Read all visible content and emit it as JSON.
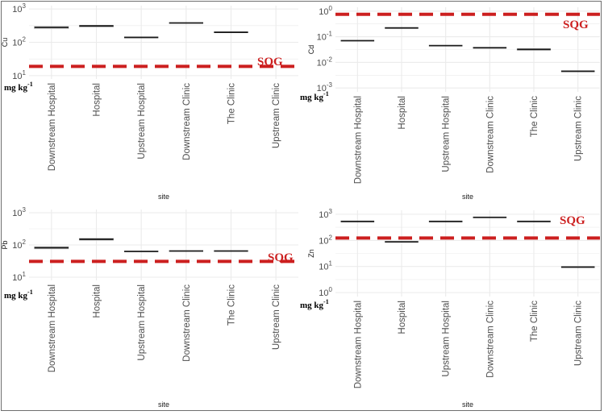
{
  "colors": {
    "grid": "#ebebeb",
    "median": "#1a1a1a",
    "box": "#bdbdbd",
    "sqg": "#cc1f1f"
  },
  "chart_data": [
    {
      "type": "box",
      "ylabel": "Cu",
      "xlabel": "site",
      "yscale": "log",
      "ylim": [
        10,
        1000
      ],
      "yticks": [
        10,
        100,
        1000
      ],
      "yticklabels": [
        [
          "10",
          "1"
        ],
        [
          "10",
          "2"
        ],
        [
          "10",
          "3"
        ]
      ],
      "categories": [
        "Downstream Hospital",
        "Hospital",
        "Upstream Hospital",
        "Downstream Clinic",
        "The Clinic",
        "Upstream Clinic"
      ],
      "values": [
        280,
        310,
        140,
        380,
        200,
        null
      ],
      "box_ranges": [
        [
          255,
          300
        ],
        [
          290,
          325
        ],
        null,
        null,
        null,
        null
      ],
      "threshold": {
        "label": "SQG",
        "value": 19
      },
      "units": "mg kg",
      "units_exp": "-1"
    },
    {
      "type": "box",
      "ylabel": "Cd",
      "xlabel": "site",
      "yscale": "log",
      "ylim": [
        0.001,
        1
      ],
      "yticks": [
        0.001,
        0.01,
        0.1,
        1
      ],
      "yticklabels": [
        [
          "10",
          "-3"
        ],
        [
          "10",
          "-2"
        ],
        [
          "10",
          "-1"
        ],
        [
          "10",
          "0"
        ]
      ],
      "categories": [
        "Downstream Hospital",
        "Hospital",
        "Upstream Hospital",
        "Downstream Clinic",
        "The Clinic",
        "Upstream Clinic"
      ],
      "values": [
        0.07,
        0.22,
        0.045,
        0.037,
        0.032,
        0.0045
      ],
      "box_ranges": [
        null,
        null,
        null,
        null,
        [
          0.03,
          0.034
        ],
        null
      ],
      "threshold": {
        "label": "SQG",
        "value": 0.75
      },
      "units": "mg kg",
      "units_exp": "-1"
    },
    {
      "type": "box",
      "ylabel": "Pb",
      "xlabel": "site",
      "yscale": "log",
      "ylim": [
        10,
        1000
      ],
      "yticks": [
        10,
        100,
        1000
      ],
      "yticklabels": [
        [
          "10",
          "1"
        ],
        [
          "10",
          "2"
        ],
        [
          "10",
          "3"
        ]
      ],
      "categories": [
        "Downstream Hospital",
        "Hospital",
        "Upstream Hospital",
        "Downstream Clinic",
        "The Clinic",
        "Upstream Clinic"
      ],
      "values": [
        82,
        150,
        63,
        65,
        65,
        null
      ],
      "box_ranges": [
        [
          76,
          88
        ],
        [
          140,
          162
        ],
        null,
        null,
        null,
        null
      ],
      "threshold": {
        "label": "SQG",
        "value": 31
      },
      "units": "mg kg",
      "units_exp": "-1"
    },
    {
      "type": "box",
      "ylabel": "Zn",
      "xlabel": "site",
      "yscale": "log",
      "ylim": [
        1,
        1000
      ],
      "yticks": [
        1,
        10,
        100,
        1000
      ],
      "yticklabels": [
        [
          "10",
          "0"
        ],
        [
          "10",
          "1"
        ],
        [
          "10",
          "2"
        ],
        [
          "10",
          "3"
        ]
      ],
      "categories": [
        "Downstream Hospital",
        "Hospital",
        "Upstream Hospital",
        "Downstream Clinic",
        "The Clinic",
        "Upstream Clinic"
      ],
      "values": [
        530,
        88,
        530,
        760,
        530,
        9.5
      ],
      "box_ranges": [
        null,
        null,
        null,
        null,
        null,
        null
      ],
      "threshold": {
        "label": "SQG",
        "value": 123
      },
      "units": "mg kg",
      "units_exp": "-1"
    }
  ]
}
